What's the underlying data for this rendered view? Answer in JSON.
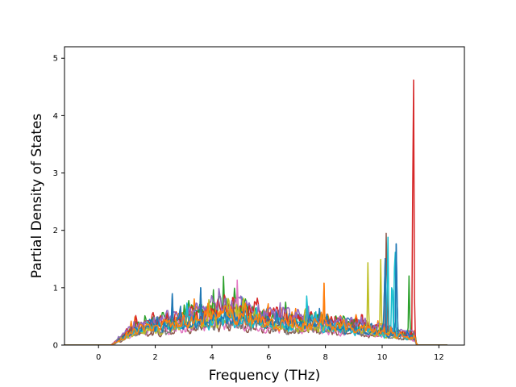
{
  "chart_data": {
    "type": "line",
    "title": "",
    "xlabel": "Frequency (THz)",
    "ylabel": "Partial Density of States",
    "xlim": [
      -1.2,
      12.9
    ],
    "ylim": [
      0,
      5.2
    ],
    "xticks": [
      0,
      2,
      4,
      6,
      8,
      10,
      12
    ],
    "yticks": [
      0,
      1,
      2,
      3,
      4,
      5
    ],
    "grid": false,
    "legend": "none",
    "series_count": 12,
    "palette": [
      "#1f77b4",
      "#ff7f0e",
      "#2ca02c",
      "#d62728",
      "#9467bd",
      "#8c564b",
      "#e377c2",
      "#7f7f7f",
      "#bcbd22",
      "#17becf"
    ],
    "notable_peaks": [
      {
        "x": 11.1,
        "y": 4.95,
        "color": "#d62728"
      },
      {
        "x": 11.1,
        "y": 2.7,
        "color": "#d62728"
      },
      {
        "x": 10.15,
        "y": 2.12,
        "color": "#8c564b"
      },
      {
        "x": 10.45,
        "y": 1.98,
        "color": "#17becf"
      },
      {
        "x": 10.2,
        "y": 1.95,
        "color": "#17becf"
      },
      {
        "x": 10.5,
        "y": 1.8,
        "color": "#1f77b4"
      },
      {
        "x": 10.1,
        "y": 1.65,
        "color": "#1f77b4"
      },
      {
        "x": 9.95,
        "y": 1.5,
        "color": "#bcbd22"
      },
      {
        "x": 9.5,
        "y": 1.45,
        "color": "#bcbd22"
      },
      {
        "x": 10.35,
        "y": 1.3,
        "color": "#17becf"
      },
      {
        "x": 4.9,
        "y": 1.28,
        "color": "#e377c2"
      },
      {
        "x": 4.4,
        "y": 1.25,
        "color": "#2ca02c"
      },
      {
        "x": 10.95,
        "y": 1.22,
        "color": "#2ca02c"
      },
      {
        "x": 5.1,
        "y": 1.05,
        "color": "#bcbd22"
      },
      {
        "x": 7.95,
        "y": 1.08,
        "color": "#ff7f0e"
      },
      {
        "x": 7.35,
        "y": 1.0,
        "color": "#17becf"
      },
      {
        "x": 3.6,
        "y": 1.0,
        "color": "#1f77b4"
      },
      {
        "x": 2.6,
        "y": 0.9,
        "color": "#1f77b4"
      },
      {
        "x": 1.65,
        "y": 0.65,
        "color": "#2ca02c"
      }
    ]
  }
}
